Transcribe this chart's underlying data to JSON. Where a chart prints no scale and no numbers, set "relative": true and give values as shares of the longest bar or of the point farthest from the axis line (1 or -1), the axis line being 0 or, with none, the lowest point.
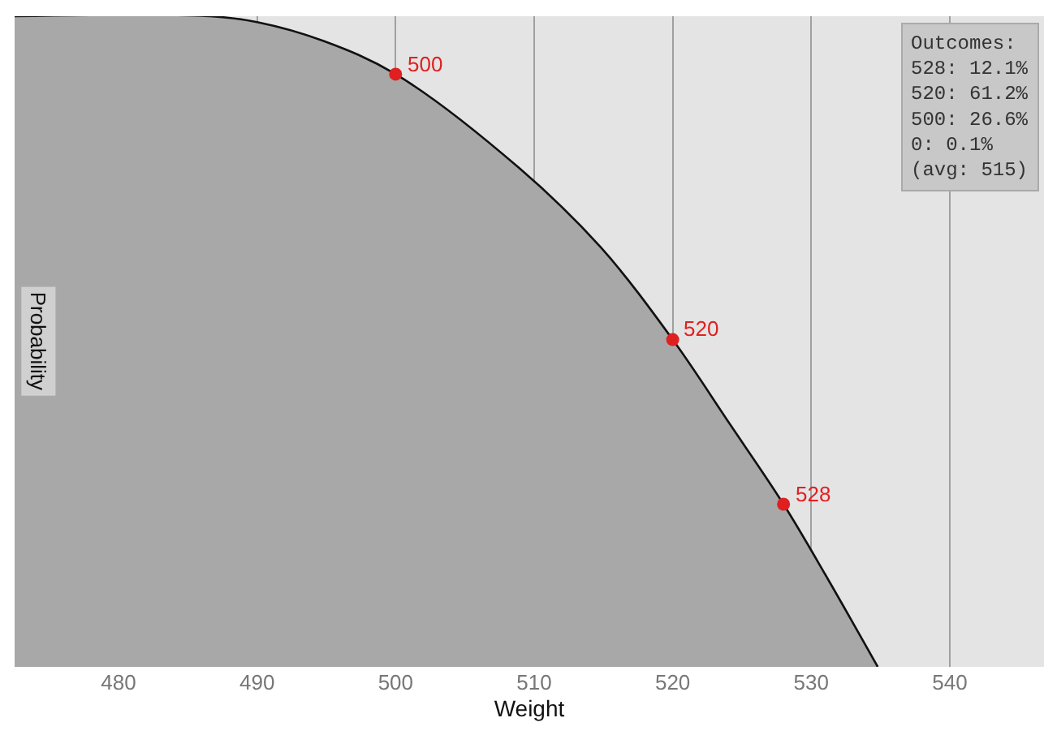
{
  "chart_data": {
    "type": "area",
    "relative": true,
    "xlabel": "Weight",
    "ylabel": "Probability",
    "xlim": [
      472.5,
      546.8
    ],
    "xticks": [
      480,
      490,
      500,
      510,
      520,
      530,
      540
    ],
    "grid": "x",
    "series": [
      {
        "color": "#a8a8a8",
        "x": [
          472.5,
          486.6,
          490,
          494.8,
          500,
          508.9,
          514.8,
          520,
          524.1,
          528,
          531.2,
          534.8
        ],
        "values": [
          1,
          1,
          0.991,
          0.962,
          0.911,
          0.767,
          0.645,
          0.503,
          0.374,
          0.25,
          0.135,
          0
        ]
      },
      {
        "type": "scatter",
        "color": "#e02020",
        "marker": "circle",
        "x": [
          500,
          520,
          528
        ],
        "values": [
          0.911,
          0.503,
          0.25
        ]
      }
    ],
    "annotations": [
      "Outcomes:",
      "528: 12.1%",
      "520: 61.2%",
      "500: 26.6%",
      "0: 0.1%",
      "(avg: 515)",
      {
        "text": "500",
        "x": 500,
        "y": 0.911
      },
      {
        "text": "520",
        "x": 520,
        "y": 0.503
      },
      {
        "text": "528",
        "x": 528,
        "y": 0.25
      }
    ]
  }
}
